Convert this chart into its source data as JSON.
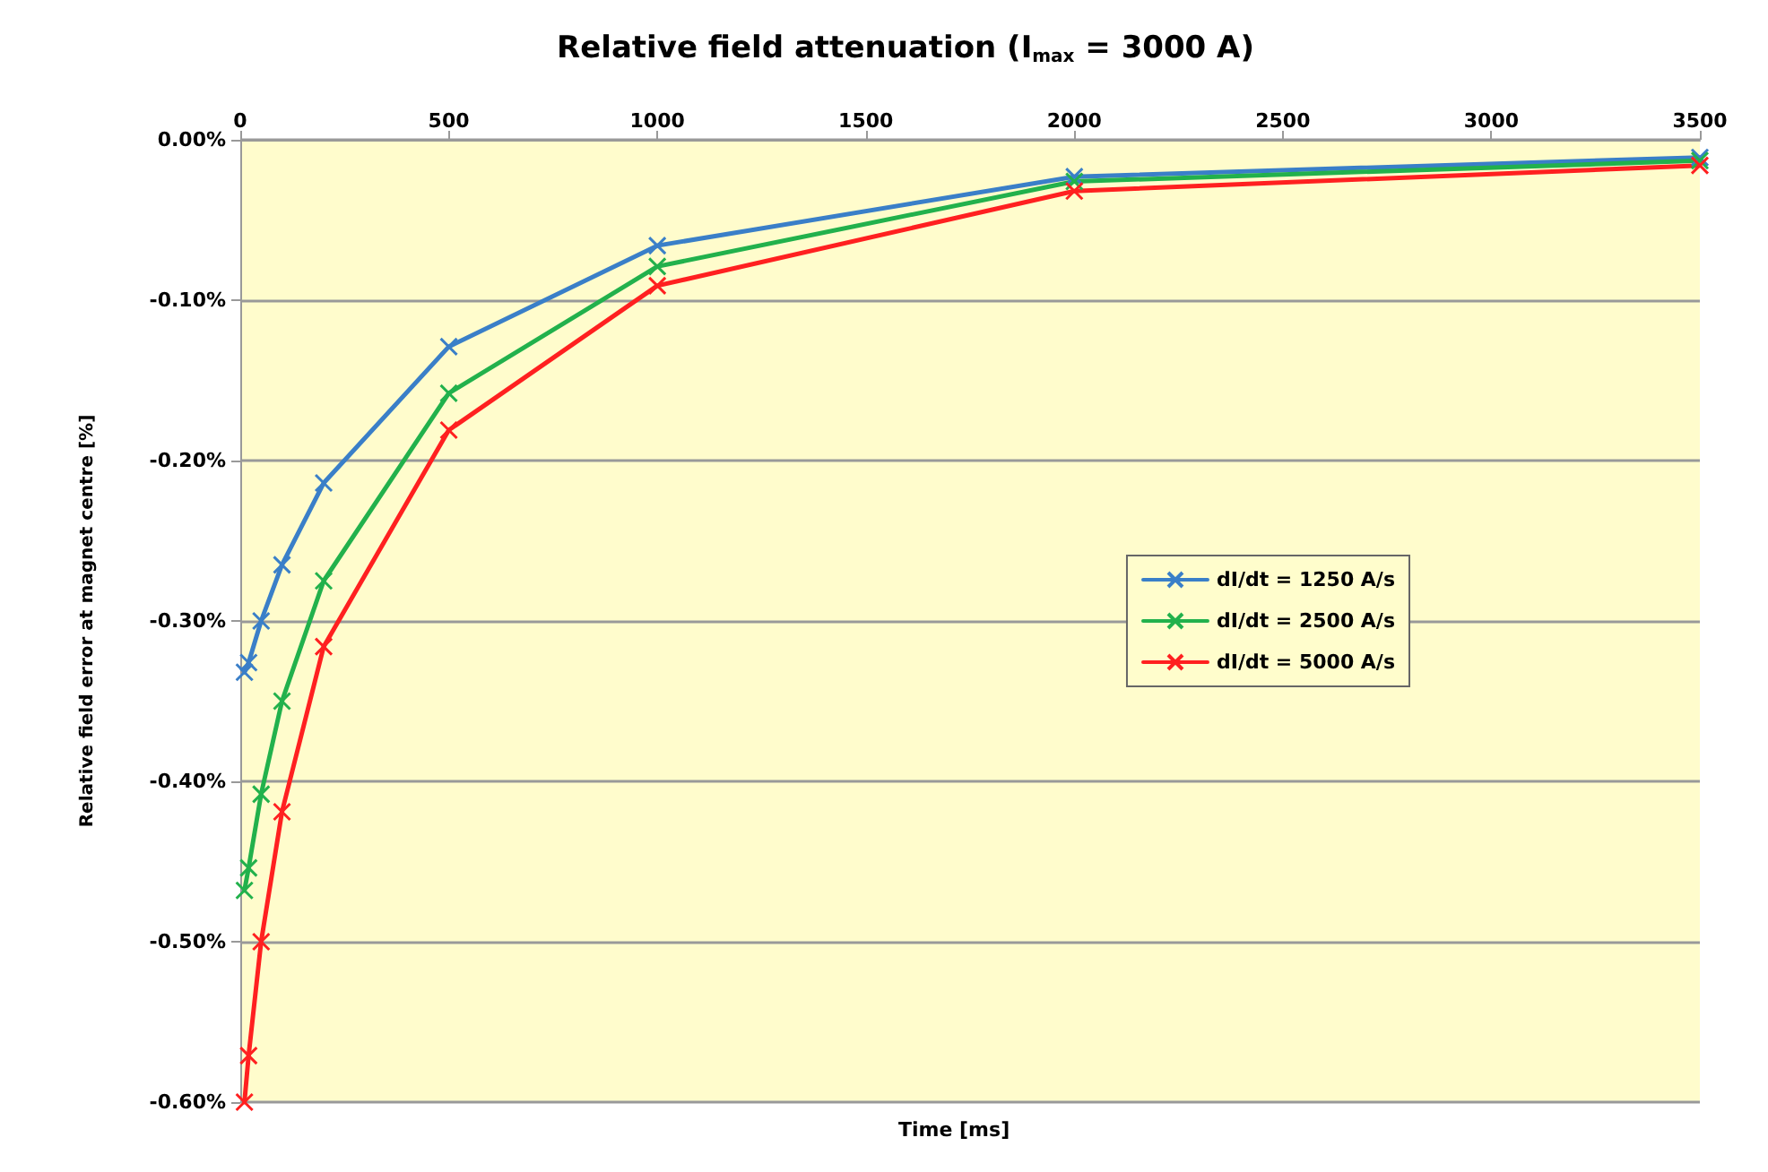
{
  "chart_data": {
    "type": "line",
    "title": "Relative field attenuation (I$_{max}$ = 3000 A)",
    "xlabel": "Time [ms]",
    "ylabel": "Relative field error at magnet centre [%]",
    "x": [
      10,
      20,
      50,
      100,
      200,
      500,
      1000,
      2000,
      3500
    ],
    "series": [
      {
        "name": "dI/dt = 1250 A/s",
        "color": "#3a7fc8",
        "values": [
          -0.332,
          -0.326,
          -0.3,
          -0.265,
          -0.214,
          -0.129,
          -0.066,
          -0.023,
          -0.011
        ]
      },
      {
        "name": "dI/dt = 2500 A/s",
        "color": "#22b14c",
        "values": [
          -0.468,
          -0.454,
          -0.408,
          -0.35,
          -0.275,
          -0.158,
          -0.079,
          -0.026,
          -0.013
        ]
      },
      {
        "name": "dI/dt = 5000 A/s",
        "color": "#ff2020",
        "values": [
          -0.6,
          -0.571,
          -0.5,
          -0.419,
          -0.316,
          -0.181,
          -0.091,
          -0.032,
          -0.016
        ]
      }
    ],
    "xlim": [
      0,
      3500
    ],
    "xticks": [
      0,
      500,
      1000,
      1500,
      2000,
      2500,
      3000,
      3500
    ],
    "ylim": [
      -0.6,
      0
    ],
    "yticks": [
      {
        "value": 0,
        "label": "0.00%"
      },
      {
        "value": -0.1,
        "label": "-0.10%"
      },
      {
        "value": -0.2,
        "label": "-0.20%"
      },
      {
        "value": -0.3,
        "label": "-0.30%"
      },
      {
        "value": -0.4,
        "label": "-0.40%"
      },
      {
        "value": -0.5,
        "label": "-0.50%"
      },
      {
        "value": -0.6,
        "label": "-0.60%"
      }
    ],
    "grid": "y",
    "legend": "right",
    "marker": "cross",
    "line_style": "solid"
  }
}
